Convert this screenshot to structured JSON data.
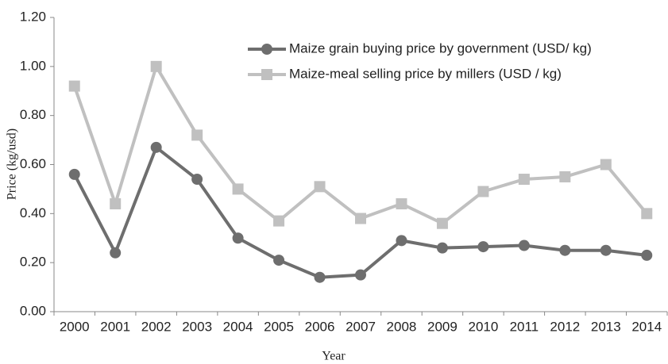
{
  "chart_data": {
    "type": "line",
    "x_label": "Year",
    "y_label": "Price (kg/usd)",
    "categories": [
      "2000",
      "2001",
      "2002",
      "2003",
      "2004",
      "2005",
      "2006",
      "2007",
      "2008",
      "2009",
      "2010",
      "2011",
      "2012",
      "2013",
      "2014"
    ],
    "series": [
      {
        "name": "Maize grain buying price by government (USD/ kg)",
        "color": "#6e6e6e",
        "marker": "circle",
        "values": [
          0.56,
          0.24,
          0.67,
          0.54,
          0.3,
          0.21,
          0.14,
          0.15,
          0.29,
          0.26,
          0.265,
          0.27,
          0.25,
          0.25,
          0.23
        ]
      },
      {
        "name": "Maize-meal selling price by millers (USD / kg)",
        "color": "#c0c0c0",
        "marker": "square",
        "values": [
          0.92,
          0.44,
          1.0,
          0.72,
          0.5,
          0.37,
          0.51,
          0.38,
          0.44,
          0.36,
          0.49,
          0.54,
          0.55,
          0.6,
          0.4
        ]
      }
    ],
    "ylim": [
      0,
      1.2
    ],
    "yticks": [
      {
        "value": 0,
        "label": "0.00"
      },
      {
        "value": 0.2,
        "label": "0.20"
      },
      {
        "value": 0.4,
        "label": "0.40"
      },
      {
        "value": 0.6,
        "label": "0.60"
      },
      {
        "value": 0.8,
        "label": "0.80"
      },
      {
        "value": 1.0,
        "label": "1.00"
      },
      {
        "value": 1.2,
        "label": "1.20"
      }
    ],
    "grid": false,
    "legend": "top-right"
  }
}
